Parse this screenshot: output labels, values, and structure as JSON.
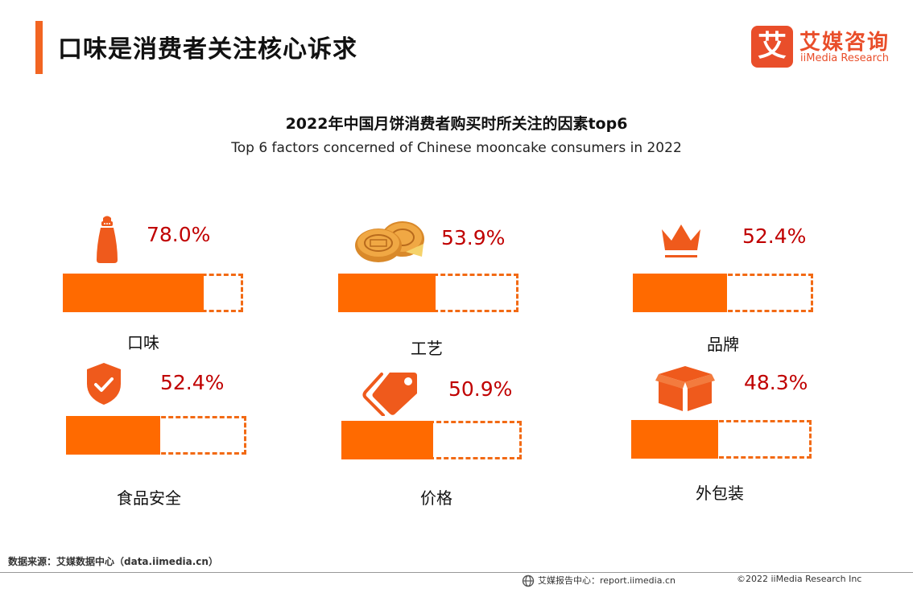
{
  "header": {
    "page_title": "口味是消费者关注核心诉求",
    "logo": {
      "mark": "艾",
      "name_cn": "艾媒咨询",
      "name_en": "iiMedia Research"
    }
  },
  "chart_data": {
    "type": "bar",
    "title": "2022年中国月饼消费者购买时所关注的因素top6",
    "subtitle": "Top 6 factors concerned of Chinese mooncake consumers in 2022",
    "categories": [
      "口味",
      "工艺",
      "品牌",
      "食品安全",
      "价格",
      "外包装"
    ],
    "values": [
      78.0,
      53.9,
      52.4,
      52.4,
      50.9,
      48.3
    ],
    "value_labels": [
      "78.0%",
      "53.9%",
      "52.4%",
      "52.4%",
      "50.9%",
      "48.3%"
    ],
    "icons": [
      "salt-shaker-icon",
      "mooncake-icon",
      "crown-icon",
      "shield-check-icon",
      "price-tag-icon",
      "box-icon"
    ],
    "ylim": [
      0,
      100
    ],
    "colors": {
      "fill": "#ff6a00",
      "track": "#f26a14",
      "value": "#c00000"
    }
  },
  "footer": {
    "source": "数据来源：艾媒数据中心（data.iimedia.cn）",
    "report_site": "艾媒报告中心：report.iimedia.cn",
    "copyright": "©2022  iiMedia Research  Inc"
  }
}
